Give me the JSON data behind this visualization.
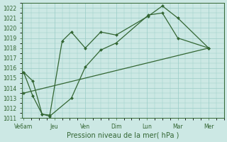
{
  "bg_color": "#cce8e4",
  "grid_color": "#99ccc6",
  "line_color": "#336633",
  "xlabel": "Pression niveau de la mer( hPa )",
  "ylim": [
    1011,
    1022.5
  ],
  "yticks": [
    1011,
    1012,
    1013,
    1014,
    1015,
    1016,
    1017,
    1018,
    1019,
    1020,
    1021,
    1022
  ],
  "xtick_labels": [
    "Ve6am",
    "Jeu",
    "Ven",
    "Dim",
    "Lun",
    "Mar",
    "Mer"
  ],
  "xtick_pos": [
    0,
    1,
    2,
    3,
    4,
    5,
    6
  ],
  "xlim": [
    -0.05,
    6.5
  ],
  "series1_x": [
    0.0,
    0.3,
    0.6,
    0.85,
    1.25,
    1.55,
    2.0,
    2.5,
    3.0,
    4.05,
    4.5,
    5.0,
    6.0
  ],
  "series1_y": [
    1015.6,
    1014.7,
    1011.4,
    1011.3,
    1018.7,
    1019.6,
    1018.0,
    1019.6,
    1019.3,
    1021.2,
    1022.2,
    1021.0,
    1018.0
  ],
  "series2_x": [
    0.0,
    0.3,
    0.6,
    0.85,
    1.55,
    2.0,
    2.5,
    3.0,
    4.05,
    4.5,
    5.0,
    6.0
  ],
  "series2_y": [
    1015.6,
    1013.2,
    1011.4,
    1011.2,
    1013.0,
    1016.1,
    1017.8,
    1018.5,
    1021.3,
    1021.5,
    1019.0,
    1018.0
  ],
  "series3_x": [
    0.0,
    6.0
  ],
  "series3_y": [
    1013.5,
    1018.0
  ]
}
